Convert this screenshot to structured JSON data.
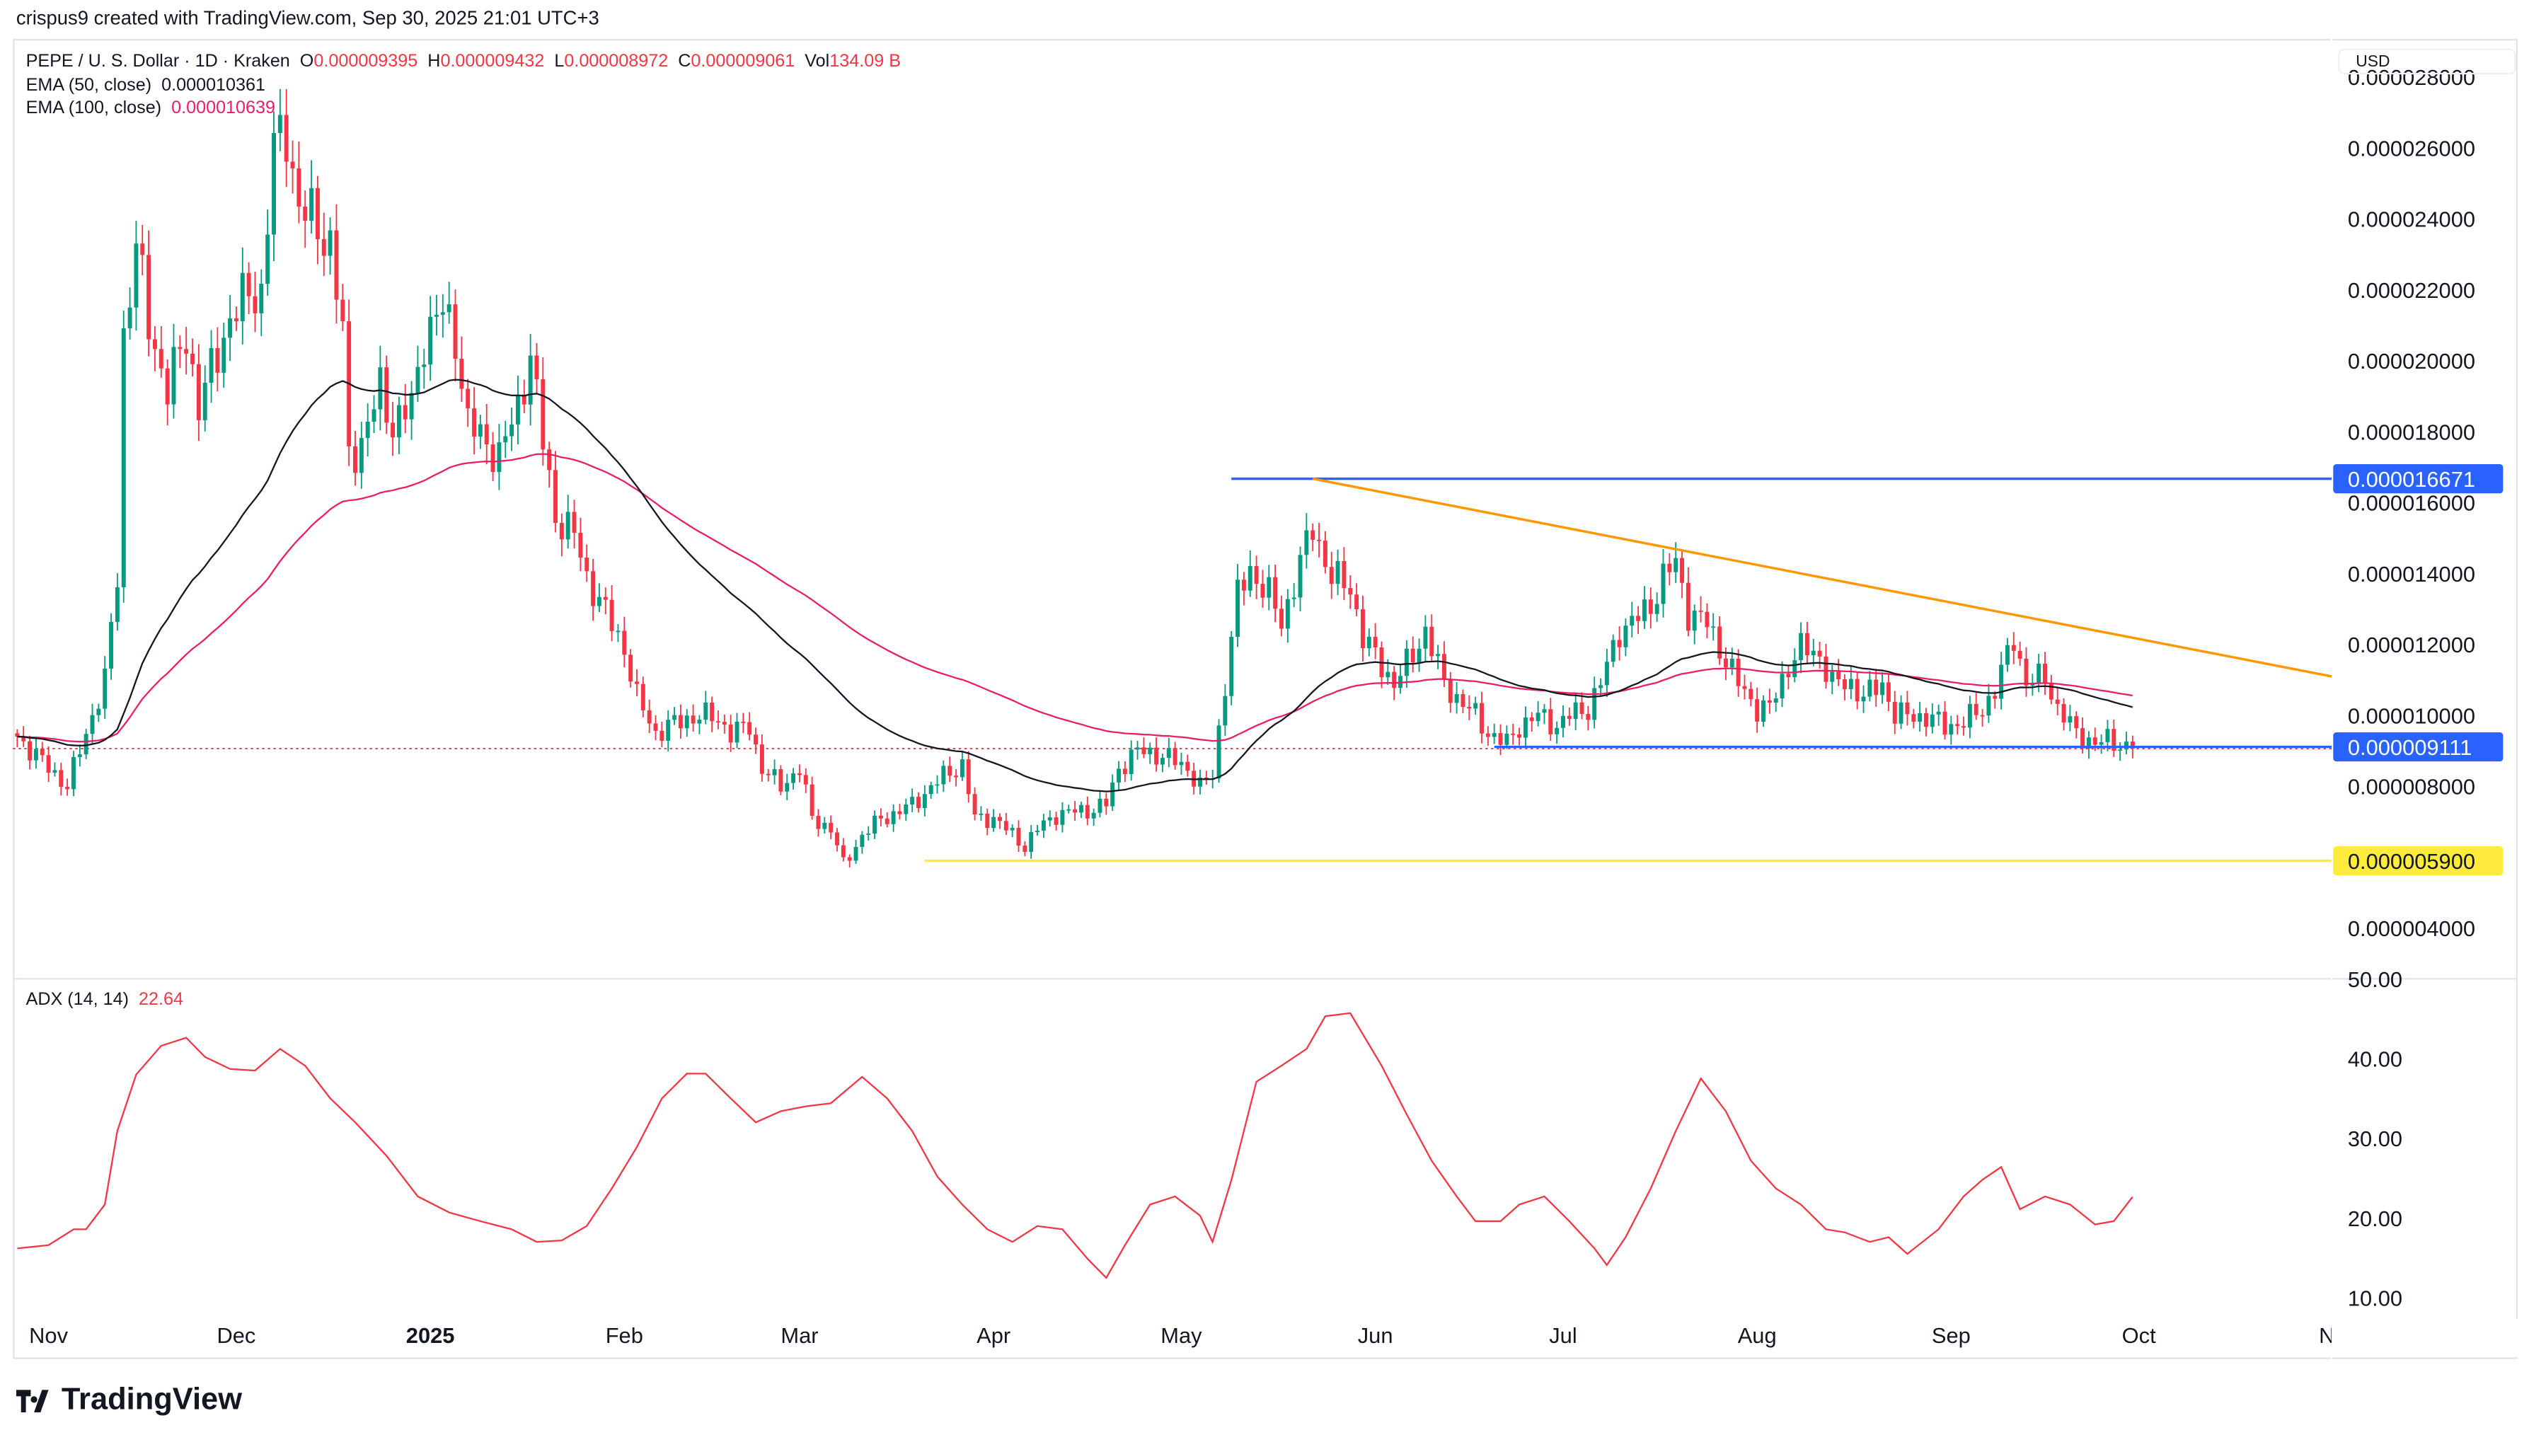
{
  "credit": "crispus9 created with TradingView.com, Sep 30, 2025 21:01 UTC+3",
  "legend": {
    "symbol": "PEPE / U. S. Dollar · 1D · Kraken",
    "o_label": "O",
    "o": "0.000009395",
    "h_label": "H",
    "h": "0.000009432",
    "l_label": "L",
    "l": "0.000008972",
    "c_label": "C",
    "c": "0.000009061",
    "vol_label": "Vol",
    "vol": "134.09 B",
    "ema50_label": "EMA (50, close)",
    "ema50": "0.000010361",
    "ema100_label": "EMA (100, close)",
    "ema100": "0.000010639",
    "adx_label": "ADX (14, 14)",
    "adx": "22.64"
  },
  "currency": "USD",
  "brand": "TradingView",
  "colors": {
    "up": "#089981",
    "down": "#f23645",
    "ema50": "#131722",
    "ema100": "#e91e63",
    "adx": "#f23645",
    "blue": "#2962ff",
    "orange": "#ff9800",
    "yellow": "#ffeb3b"
  },
  "chart_data": [
    {
      "type": "candlestick",
      "unit_note_ticks": [
        "0.000028000",
        "0.000026000",
        "0.000024000",
        "0.000022000",
        "0.000020000",
        "0.000018000",
        "0.000016000",
        "0.000014000",
        "0.000012000",
        "0.000010000",
        "0.000008000",
        "0.000004000"
      ],
      "y_scale_factor": "1e-6",
      "ylim": [
        2.8,
        28.8
      ],
      "close_anchors": [
        [
          "2024-10-27",
          9.4
        ],
        [
          "2024-11-04",
          8.0
        ],
        [
          "2024-11-07",
          9.5
        ],
        [
          "2024-11-10",
          11
        ],
        [
          "2024-11-12",
          13.9
        ],
        [
          "2024-11-13",
          20.7
        ],
        [
          "2024-11-15",
          23.3
        ],
        [
          "2024-11-17",
          21
        ],
        [
          "2024-11-20",
          19.2
        ],
        [
          "2024-11-23",
          20.7
        ],
        [
          "2024-11-25",
          18.7
        ],
        [
          "2024-11-28",
          20.2
        ],
        [
          "2024-11-30",
          21.2
        ],
        [
          "2024-12-03",
          21.9
        ],
        [
          "2024-12-05",
          21.9
        ],
        [
          "2024-12-07",
          26
        ],
        [
          "2024-12-09",
          26.5
        ],
        [
          "2024-12-11",
          24.3
        ],
        [
          "2024-12-13",
          24
        ],
        [
          "2024-12-16",
          23.3
        ],
        [
          "2024-12-18",
          20.7
        ],
        [
          "2024-12-19",
          17.3
        ],
        [
          "2024-12-21",
          17.7
        ],
        [
          "2024-12-24",
          19.2
        ],
        [
          "2024-12-26",
          18.2
        ],
        [
          "2024-12-29",
          18.7
        ],
        [
          "2024-12-31",
          20.7
        ],
        [
          "2025-01-03",
          21.4
        ],
        [
          "2025-01-05",
          20.7
        ],
        [
          "2025-01-07",
          18.2
        ],
        [
          "2025-01-10",
          17.7
        ],
        [
          "2025-01-12",
          17.3
        ],
        [
          "2025-01-15",
          18.7
        ],
        [
          "2025-01-17",
          20.2
        ],
        [
          "2025-01-19",
          17.7
        ],
        [
          "2025-01-21",
          15.6
        ],
        [
          "2025-01-24",
          15.1
        ],
        [
          "2025-01-26",
          13.9
        ],
        [
          "2025-01-29",
          12.9
        ],
        [
          "2025-02-01",
          11.9
        ],
        [
          "2025-02-03",
          10.5
        ],
        [
          "2025-02-06",
          9.5
        ],
        [
          "2025-02-08",
          9.7
        ],
        [
          "2025-02-11",
          9.9
        ],
        [
          "2025-02-13",
          10
        ],
        [
          "2025-02-16",
          9.9
        ],
        [
          "2025-02-18",
          9.5
        ],
        [
          "2025-02-21",
          9.7
        ],
        [
          "2025-02-23",
          8.5
        ],
        [
          "2025-02-26",
          8.0
        ],
        [
          "2025-03-01",
          8.5
        ],
        [
          "2025-03-03",
          7.1
        ],
        [
          "2025-03-06",
          6.8
        ],
        [
          "2025-03-08",
          5.8
        ],
        [
          "2025-03-11",
          6.6
        ],
        [
          "2025-03-14",
          7.1
        ],
        [
          "2025-03-16",
          7.2
        ],
        [
          "2025-03-19",
          7.5
        ],
        [
          "2025-03-21",
          7.8
        ],
        [
          "2025-03-24",
          8.3
        ],
        [
          "2025-03-27",
          8.6
        ],
        [
          "2025-03-29",
          7.1
        ],
        [
          "2025-04-01",
          7.1
        ],
        [
          "2025-04-03",
          6.8
        ],
        [
          "2025-04-06",
          6.3
        ],
        [
          "2025-04-08",
          6.8
        ],
        [
          "2025-04-11",
          7.2
        ],
        [
          "2025-04-14",
          7.3
        ],
        [
          "2025-04-16",
          7.3
        ],
        [
          "2025-04-19",
          7.5
        ],
        [
          "2025-04-21",
          8.5
        ],
        [
          "2025-04-24",
          9.0
        ],
        [
          "2025-04-27",
          8.9
        ],
        [
          "2025-04-29",
          8.8
        ],
        [
          "2025-05-02",
          8.5
        ],
        [
          "2025-05-04",
          8.0
        ],
        [
          "2025-05-06",
          8.3
        ],
        [
          "2025-05-08",
          10.9
        ],
        [
          "2025-05-10",
          13.4
        ],
        [
          "2025-05-12",
          14.1
        ],
        [
          "2025-05-15",
          13.4
        ],
        [
          "2025-05-17",
          12.6
        ],
        [
          "2025-05-20",
          14.3
        ],
        [
          "2025-05-22",
          15.3
        ],
        [
          "2025-05-25",
          13.9
        ],
        [
          "2025-05-28",
          13.6
        ],
        [
          "2025-05-30",
          12.2
        ],
        [
          "2025-06-02",
          11.4
        ],
        [
          "2025-06-04",
          10.9
        ],
        [
          "2025-06-07",
          11.7
        ],
        [
          "2025-06-09",
          12.4
        ],
        [
          "2025-06-12",
          10.9
        ],
        [
          "2025-06-14",
          10.5
        ],
        [
          "2025-06-17",
          10
        ],
        [
          "2025-06-19",
          9.5
        ],
        [
          "2025-06-22",
          9.2
        ],
        [
          "2025-06-24",
          9.7
        ],
        [
          "2025-06-27",
          10
        ],
        [
          "2025-06-30",
          9.7
        ],
        [
          "2025-07-02",
          10
        ],
        [
          "2025-07-05",
          10.2
        ],
        [
          "2025-07-07",
          10.9
        ],
        [
          "2025-07-10",
          12.4
        ],
        [
          "2025-07-12",
          12.6
        ],
        [
          "2025-07-15",
          13.1
        ],
        [
          "2025-07-17",
          13.9
        ],
        [
          "2025-07-19",
          14.3
        ],
        [
          "2025-07-21",
          12.9
        ],
        [
          "2025-07-24",
          12.6
        ],
        [
          "2025-07-26",
          11.9
        ],
        [
          "2025-07-29",
          10.9
        ],
        [
          "2025-08-01",
          10.2
        ],
        [
          "2025-08-03",
          10.2
        ],
        [
          "2025-08-06",
          11.4
        ],
        [
          "2025-08-08",
          11.9
        ],
        [
          "2025-08-11",
          11.7
        ],
        [
          "2025-08-13",
          10.9
        ],
        [
          "2025-08-16",
          10.9
        ],
        [
          "2025-08-18",
          10.5
        ],
        [
          "2025-08-21",
          10.9
        ],
        [
          "2025-08-23",
          10
        ],
        [
          "2025-08-26",
          10
        ],
        [
          "2025-08-29",
          9.9
        ],
        [
          "2025-08-31",
          9.7
        ],
        [
          "2025-09-03",
          9.8
        ],
        [
          "2025-09-06",
          10.2
        ],
        [
          "2025-09-08",
          10.7
        ],
        [
          "2025-09-11",
          12.2
        ],
        [
          "2025-09-13",
          10.9
        ],
        [
          "2025-09-16",
          11.1
        ],
        [
          "2025-09-18",
          10.2
        ],
        [
          "2025-09-21",
          9.5
        ],
        [
          "2025-09-24",
          9.2
        ],
        [
          "2025-09-26",
          9.3
        ],
        [
          "2025-09-30",
          9.061
        ]
      ],
      "indicators": [
        "EMA 50 (close)",
        "EMA 100 (close)"
      ],
      "last_price": 9.061,
      "drawings": [
        {
          "type": "horizontal",
          "color": "blue",
          "price": 16.671,
          "from": "2025-05-09",
          "label": "0.000016671"
        },
        {
          "type": "trendline",
          "color": "orange",
          "from": [
            "2025-05-22",
            16.671
          ],
          "to": [
            "2025-11-01",
            11.1
          ]
        },
        {
          "type": "horizontal",
          "color": "blue",
          "price": 9.111,
          "from": "2025-06-20",
          "label": "0.000009111"
        },
        {
          "type": "horizontal",
          "color": "yellow",
          "price": 5.9,
          "from": "2025-03-21",
          "label": "0.000005900"
        }
      ]
    },
    {
      "type": "line",
      "name": "ADX (14, 14)",
      "ticks": [
        "50.00",
        "40.00",
        "30.00",
        "20.00",
        "10.00"
      ],
      "ylim": [
        8,
        50.4
      ],
      "points": [
        [
          "2024-10-27",
          16.2
        ],
        [
          "2024-11-01",
          16.6
        ],
        [
          "2024-11-05",
          18.6
        ],
        [
          "2024-11-07",
          18.6
        ],
        [
          "2024-11-10",
          21.7
        ],
        [
          "2024-11-12",
          30.9
        ],
        [
          "2024-11-15",
          38
        ],
        [
          "2024-11-19",
          41.6
        ],
        [
          "2024-11-23",
          42.6
        ],
        [
          "2024-11-26",
          40.2
        ],
        [
          "2024-11-30",
          38.7
        ],
        [
          "2024-12-04",
          38.5
        ],
        [
          "2024-12-08",
          41.2
        ],
        [
          "2024-12-12",
          39.1
        ],
        [
          "2024-12-16",
          35
        ],
        [
          "2024-12-20",
          32
        ],
        [
          "2024-12-25",
          27.8
        ],
        [
          "2024-12-30",
          22.7
        ],
        [
          "2025-01-04",
          20.7
        ],
        [
          "2025-01-09",
          19.6
        ],
        [
          "2025-01-14",
          18.6
        ],
        [
          "2025-01-18",
          17
        ],
        [
          "2025-01-22",
          17.2
        ],
        [
          "2025-01-26",
          19
        ],
        [
          "2025-01-30",
          23.7
        ],
        [
          "2025-02-03",
          28.9
        ],
        [
          "2025-02-07",
          35
        ],
        [
          "2025-02-11",
          38.1
        ],
        [
          "2025-02-14",
          38.1
        ],
        [
          "2025-02-18",
          35
        ],
        [
          "2025-02-22",
          32
        ],
        [
          "2025-02-26",
          33.4
        ],
        [
          "2025-03-02",
          34
        ],
        [
          "2025-03-06",
          34.4
        ],
        [
          "2025-03-11",
          37.7
        ],
        [
          "2025-03-15",
          35
        ],
        [
          "2025-03-19",
          30.9
        ],
        [
          "2025-03-23",
          25.2
        ],
        [
          "2025-03-27",
          21.7
        ],
        [
          "2025-03-31",
          18.6
        ],
        [
          "2025-04-04",
          17
        ],
        [
          "2025-04-08",
          19
        ],
        [
          "2025-04-12",
          18.6
        ],
        [
          "2025-04-16",
          14.9
        ],
        [
          "2025-04-19",
          12.5
        ],
        [
          "2025-04-22",
          16.6
        ],
        [
          "2025-04-26",
          21.7
        ],
        [
          "2025-04-30",
          22.7
        ],
        [
          "2025-05-04",
          20.3
        ],
        [
          "2025-05-06",
          17
        ],
        [
          "2025-05-09",
          24.8
        ],
        [
          "2025-05-13",
          37.1
        ],
        [
          "2025-05-17",
          39.1
        ],
        [
          "2025-05-21",
          41.2
        ],
        [
          "2025-05-24",
          45.3
        ],
        [
          "2025-05-28",
          45.7
        ],
        [
          "2025-06-02",
          39.1
        ],
        [
          "2025-06-06",
          33
        ],
        [
          "2025-06-10",
          27.2
        ],
        [
          "2025-06-14",
          22.7
        ],
        [
          "2025-06-17",
          19.6
        ],
        [
          "2025-06-21",
          19.6
        ],
        [
          "2025-06-24",
          21.7
        ],
        [
          "2025-06-28",
          22.7
        ],
        [
          "2025-07-02",
          19.6
        ],
        [
          "2025-07-06",
          16.2
        ],
        [
          "2025-07-08",
          14.1
        ],
        [
          "2025-07-11",
          17.6
        ],
        [
          "2025-07-15",
          23.7
        ],
        [
          "2025-07-19",
          30.9
        ],
        [
          "2025-07-23",
          37.5
        ],
        [
          "2025-07-27",
          33.4
        ],
        [
          "2025-07-31",
          27.2
        ],
        [
          "2025-08-04",
          23.7
        ],
        [
          "2025-08-08",
          21.7
        ],
        [
          "2025-08-12",
          18.6
        ],
        [
          "2025-08-15",
          18.2
        ],
        [
          "2025-08-19",
          17
        ],
        [
          "2025-08-22",
          17.6
        ],
        [
          "2025-08-25",
          15.5
        ],
        [
          "2025-08-30",
          18.6
        ],
        [
          "2025-09-03",
          22.7
        ],
        [
          "2025-09-06",
          24.8
        ],
        [
          "2025-09-09",
          26.4
        ],
        [
          "2025-09-12",
          21.1
        ],
        [
          "2025-09-16",
          22.7
        ],
        [
          "2025-09-20",
          21.7
        ],
        [
          "2025-09-24",
          19.2
        ],
        [
          "2025-09-27",
          19.6
        ],
        [
          "2025-09-30",
          22.64
        ]
      ]
    }
  ],
  "time_axis": [
    {
      "label": "Nov",
      "date": "2024-11-01"
    },
    {
      "label": "Dec",
      "date": "2024-12-01"
    },
    {
      "label": "2025",
      "date": "2025-01-01",
      "bold": true
    },
    {
      "label": "Feb",
      "date": "2025-02-01"
    },
    {
      "label": "Mar",
      "date": "2025-03-01"
    },
    {
      "label": "Apr",
      "date": "2025-04-01"
    },
    {
      "label": "May",
      "date": "2025-05-01"
    },
    {
      "label": "Jun",
      "date": "2025-06-01"
    },
    {
      "label": "Jul",
      "date": "2025-07-01"
    },
    {
      "label": "Aug",
      "date": "2025-08-01"
    },
    {
      "label": "Sep",
      "date": "2025-09-01"
    },
    {
      "label": "Oct",
      "date": "2025-10-01"
    },
    {
      "label": "No",
      "date": "2025-11-01"
    }
  ]
}
